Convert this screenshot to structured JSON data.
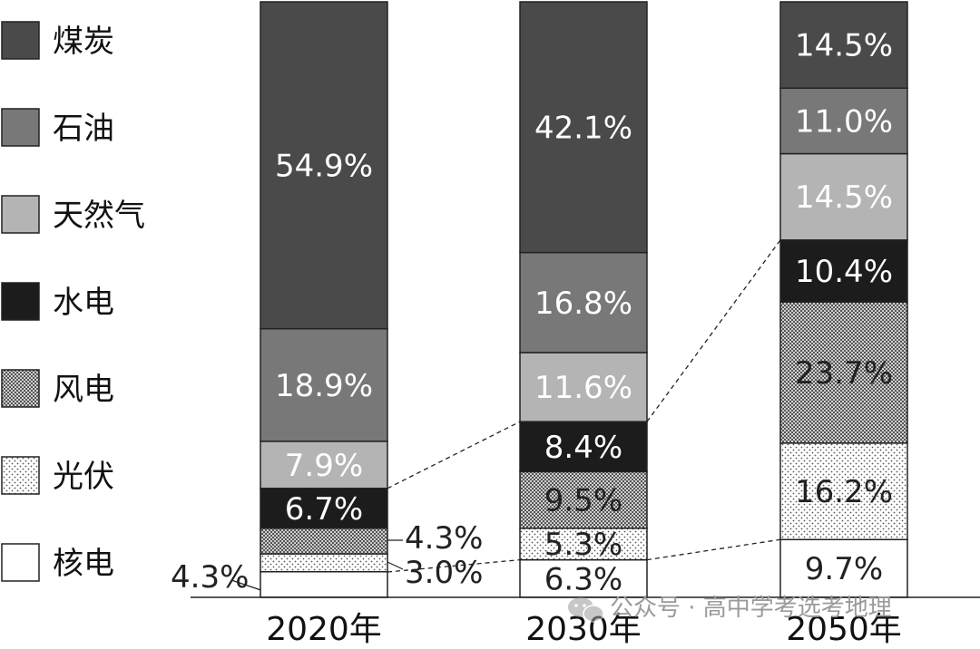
{
  "chart_data": {
    "type": "bar",
    "stacked": true,
    "categories": [
      "2020年",
      "2030年",
      "2050年"
    ],
    "series": [
      {
        "name": "核电",
        "values": [
          4.3,
          6.3,
          9.7
        ],
        "color": "#ffffff",
        "pattern": "none"
      },
      {
        "name": "光伏",
        "values": [
          3.0,
          5.3,
          16.2
        ],
        "color": "#ffffff",
        "pattern": "sparse-dots"
      },
      {
        "name": "风电",
        "values": [
          4.3,
          9.5,
          23.7
        ],
        "color": "#c8c8c8",
        "pattern": "dense-crosshatch"
      },
      {
        "name": "水电",
        "values": [
          6.7,
          8.4,
          10.4
        ],
        "color": "#1c1c1c",
        "pattern": "none"
      },
      {
        "name": "天然气",
        "values": [
          7.9,
          11.6,
          14.5
        ],
        "color": "#b4b4b4",
        "pattern": "none"
      },
      {
        "name": "石油",
        "values": [
          18.9,
          16.8,
          11.0
        ],
        "color": "#787878",
        "pattern": "none"
      },
      {
        "name": "煤炭",
        "values": [
          54.9,
          42.1,
          14.5
        ],
        "color": "#4a4a4a",
        "pattern": "none"
      }
    ],
    "labels": [
      [
        "4.3%",
        "6.3%",
        "9.7%"
      ],
      [
        "3.0%",
        "5.3%",
        "16.2%"
      ],
      [
        "4.3%",
        "9.5%",
        "23.7%"
      ],
      [
        "6.7%",
        "8.4%",
        "10.4%"
      ],
      [
        "7.9%",
        "11.6%",
        "14.5%"
      ],
      [
        "18.9%",
        "16.8%",
        "11.0%"
      ],
      [
        "54.9%",
        "42.1%",
        "14.5%"
      ]
    ],
    "legend_order": [
      "煤炭",
      "石油",
      "天然气",
      "水电",
      "风电",
      "光伏",
      "核电"
    ],
    "legend_position": "left",
    "grid": false,
    "ylim": [
      0,
      100
    ],
    "connectors": "dashed lines linking the 水电 segment and the 核电/光伏 boundary between adjacent bars"
  },
  "watermark": {
    "text": "公众号 · 高中学考选考地理",
    "icon": "wechat-icon"
  }
}
